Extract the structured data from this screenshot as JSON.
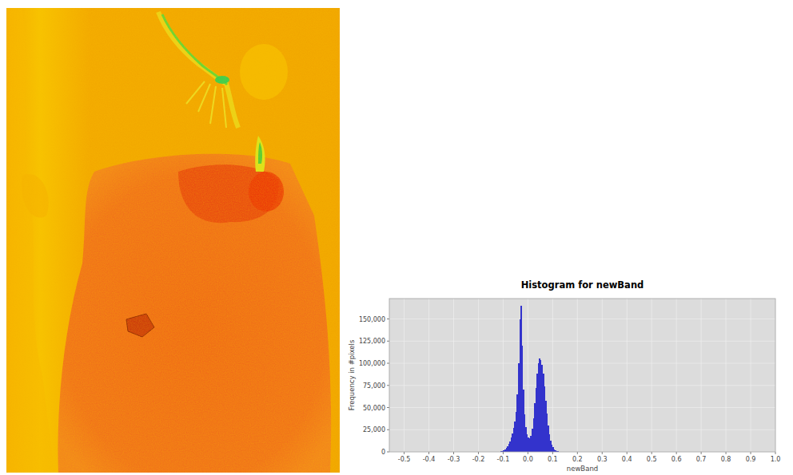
{
  "chart_data": {
    "type": "histogram",
    "title": "Histogram for newBand",
    "x_label": "newBand",
    "y_label": "Frequency in #pixels",
    "color": "#3333cc",
    "grid": true,
    "bins": [
      -0.15,
      -0.145,
      -0.14,
      -0.135,
      -0.13,
      -0.125,
      -0.12,
      -0.115,
      -0.11,
      -0.105,
      -0.1,
      -0.095,
      -0.09,
      -0.085,
      -0.08,
      -0.075,
      -0.07,
      -0.065,
      -0.06,
      -0.055,
      -0.05,
      -0.045,
      -0.04,
      -0.035,
      -0.03,
      -0.025,
      -0.02,
      -0.015,
      -0.01,
      -0.005,
      0,
      0.005,
      0.01,
      0.015,
      0.02,
      0.025,
      0.03,
      0.035,
      0.04,
      0.045,
      0.05,
      0.055,
      0.06,
      0.065,
      0.07,
      0.075,
      0.08,
      0.085,
      0.09,
      0.095,
      0.1,
      0.105,
      0.11,
      0.115,
      0.12,
      0.125,
      0.13,
      0.135,
      0.14,
      0.145,
      0.15,
      0.155,
      0.16,
      0.165,
      0.17,
      0.175,
      0.18,
      0.185,
      0.19,
      0.195,
      0.2
    ],
    "values": [
      0,
      0,
      0,
      0,
      50,
      100,
      200,
      400,
      700,
      1200,
      2000,
      3000,
      4500,
      6500,
      9000,
      12000,
      16000,
      21000,
      27000,
      34000,
      45000,
      65000,
      100000,
      150000,
      165000,
      120000,
      70000,
      42000,
      28000,
      20000,
      16000,
      15000,
      18000,
      26000,
      38000,
      55000,
      72000,
      88000,
      100000,
      105000,
      104000,
      98000,
      88000,
      74000,
      58000,
      43000,
      30000,
      20000,
      13000,
      8000,
      5000,
      3000,
      1800,
      1000,
      600,
      300,
      150,
      80,
      40,
      20,
      10,
      0,
      0,
      0,
      0,
      0,
      0,
      0,
      0,
      0
    ],
    "xlim": [
      -0.56,
      1.0
    ],
    "xticks": [
      -0.5,
      -0.4,
      -0.3,
      -0.2,
      -0.1,
      {
        "value": 0,
        "label": "0.0"
      },
      0.1,
      0.2,
      0.3,
      0.4,
      0.5,
      0.6,
      0.7,
      0.8,
      0.9,
      {
        "value": 1,
        "label": "1.0"
      }
    ],
    "ylim": [
      0,
      173000
    ],
    "yticks": [
      0,
      {
        "value": 25000,
        "label": "25,000"
      },
      {
        "value": 50000,
        "label": "50,000"
      },
      {
        "value": 75000,
        "label": "75,000"
      },
      {
        "value": 100000,
        "label": "100,000"
      },
      {
        "value": 125000,
        "label": "125,000"
      },
      {
        "value": 150000,
        "label": "150,000"
      }
    ]
  }
}
